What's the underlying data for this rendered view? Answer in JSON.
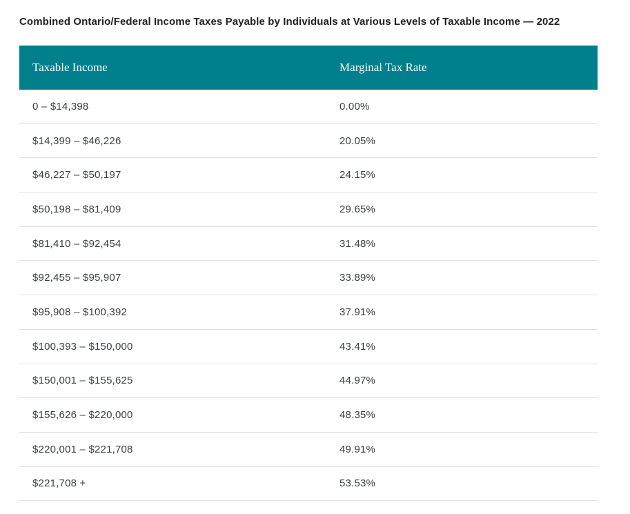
{
  "page": {
    "title": "Combined Ontario/Federal Income Taxes Payable by Individuals at Various Levels of Taxable Income — 2022"
  },
  "colors": {
    "header_bg": "#00808c",
    "header_text": "#ffffff",
    "body_text": "#3c4043",
    "row_divider": "#e0e0e0"
  },
  "table": {
    "headers": [
      "Taxable Income",
      "Marginal Tax Rate"
    ],
    "rows": [
      {
        "income": "0 – $14,398",
        "rate": "0.00%"
      },
      {
        "income": "$14,399 – $46,226",
        "rate": "20.05%"
      },
      {
        "income": "$46,227 – $50,197",
        "rate": "24.15%"
      },
      {
        "income": "$50,198 – $81,409",
        "rate": "29.65%"
      },
      {
        "income": "$81,410 – $92,454",
        "rate": "31.48%"
      },
      {
        "income": "$92,455 – $95,907",
        "rate": "33.89%"
      },
      {
        "income": "$95,908 – $100,392",
        "rate": "37.91%"
      },
      {
        "income": "$100,393 – $150,000",
        "rate": "43.41%"
      },
      {
        "income": "$150,001 – $155,625",
        "rate": "44.97%"
      },
      {
        "income": "$155,626 – $220,000",
        "rate": "48.35%"
      },
      {
        "income": "$220,001 – $221,708",
        "rate": "49.91%"
      },
      {
        "income": "$221,708 +",
        "rate": "53.53%"
      }
    ]
  }
}
